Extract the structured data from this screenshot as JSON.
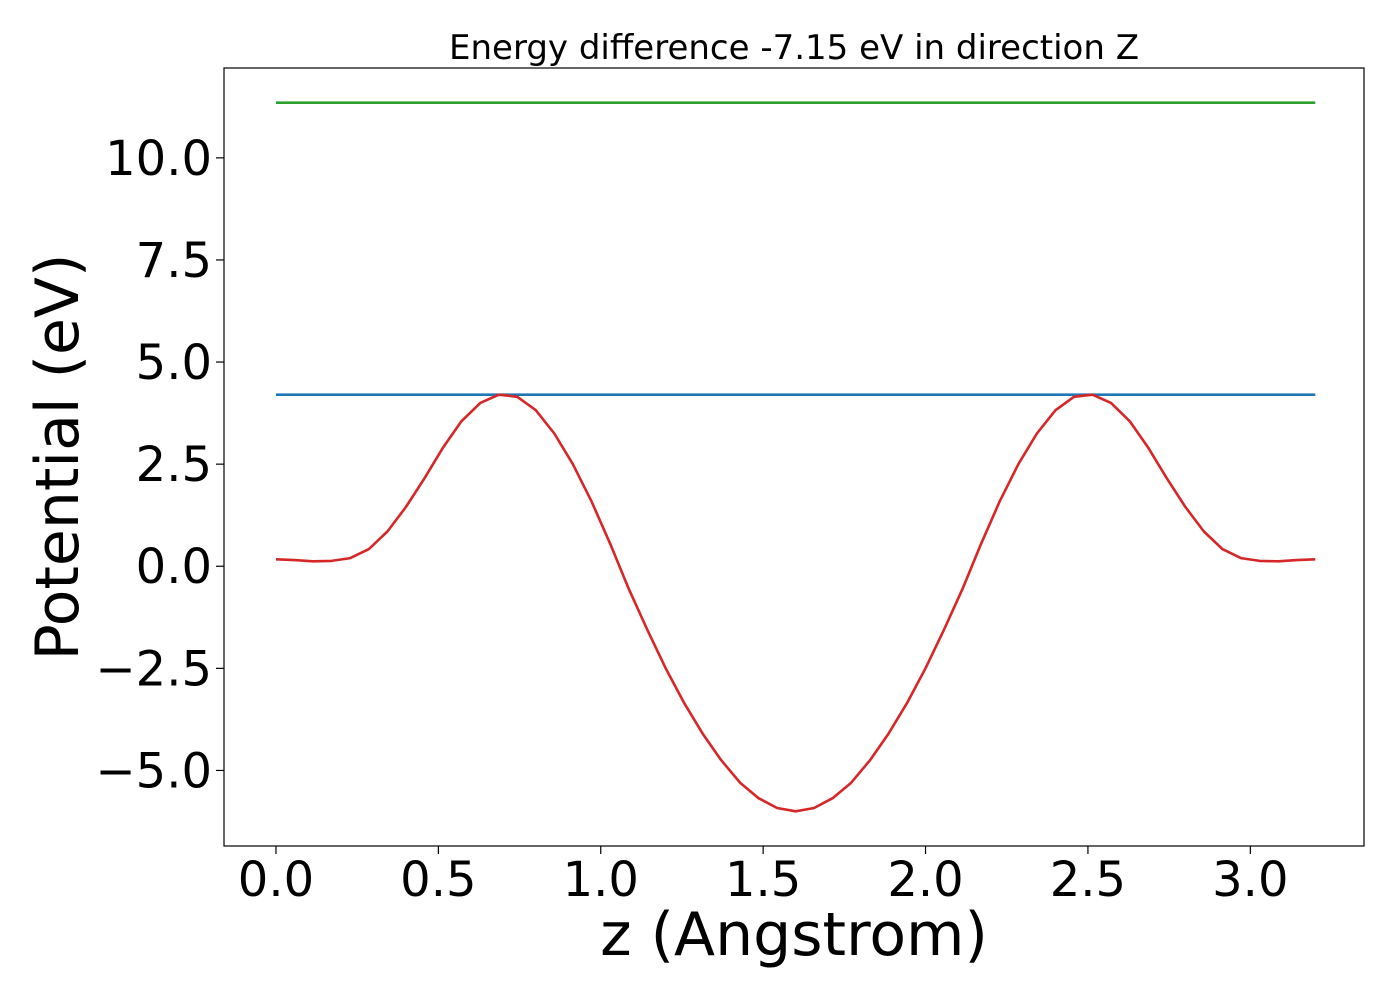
{
  "chart_data": {
    "type": "line",
    "title": "Energy difference -7.15 eV in direction Z",
    "xlabel": "z (Angstrom)",
    "ylabel": "Potential (eV)",
    "xlim": [
      -0.16,
      3.35
    ],
    "ylim": [
      -6.85,
      12.2
    ],
    "x_ticks": [
      {
        "value": 0.0,
        "label": "0.0"
      },
      {
        "value": 0.5,
        "label": "0.5"
      },
      {
        "value": 1.0,
        "label": "1.0"
      },
      {
        "value": 1.5,
        "label": "1.5"
      },
      {
        "value": 2.0,
        "label": "2.0"
      },
      {
        "value": 2.5,
        "label": "2.5"
      },
      {
        "value": 3.0,
        "label": "3.0"
      }
    ],
    "y_ticks": [
      {
        "value": -5.0,
        "label": "−5.0"
      },
      {
        "value": -2.5,
        "label": "−2.5"
      },
      {
        "value": 0.0,
        "label": "0.0"
      },
      {
        "value": 2.5,
        "label": "2.5"
      },
      {
        "value": 5.0,
        "label": "5.0"
      },
      {
        "value": 7.5,
        "label": "7.5"
      },
      {
        "value": 10.0,
        "label": "10.0"
      }
    ],
    "grid": false,
    "legend": "none",
    "series": [
      {
        "color": "#2ca02c",
        "x": [
          0.0,
          3.2
        ],
        "y": [
          11.35,
          11.35
        ]
      },
      {
        "color": "#1f77b4",
        "x": [
          0.0,
          3.2
        ],
        "y": [
          4.2,
          4.2
        ]
      },
      {
        "color": "#d62728",
        "x": [
          0.0,
          0.057,
          0.114,
          0.171,
          0.229,
          0.286,
          0.343,
          0.4,
          0.457,
          0.514,
          0.571,
          0.629,
          0.686,
          0.743,
          0.8,
          0.857,
          0.914,
          0.971,
          1.029,
          1.086,
          1.143,
          1.2,
          1.257,
          1.314,
          1.371,
          1.429,
          1.486,
          1.543,
          1.6,
          1.657,
          1.714,
          1.771,
          1.829,
          1.886,
          1.943,
          2.0,
          2.057,
          2.114,
          2.171,
          2.229,
          2.286,
          2.343,
          2.4,
          2.457,
          2.514,
          2.571,
          2.629,
          2.686,
          2.743,
          2.8,
          2.857,
          2.914,
          2.971,
          3.029,
          3.086,
          3.143,
          3.2
        ],
        "y": [
          0.17,
          0.15,
          0.12,
          0.13,
          0.2,
          0.42,
          0.85,
          1.45,
          2.15,
          2.9,
          3.55,
          4.0,
          4.2,
          4.15,
          3.82,
          3.25,
          2.5,
          1.6,
          0.55,
          -0.55,
          -1.55,
          -2.5,
          -3.35,
          -4.1,
          -4.75,
          -5.3,
          -5.68,
          -5.92,
          -6.0,
          -5.92,
          -5.68,
          -5.3,
          -4.75,
          -4.1,
          -3.35,
          -2.5,
          -1.55,
          -0.55,
          0.55,
          1.6,
          2.5,
          3.25,
          3.82,
          4.15,
          4.2,
          4.0,
          3.55,
          2.9,
          2.15,
          1.45,
          0.85,
          0.42,
          0.2,
          0.13,
          0.12,
          0.15,
          0.17
        ]
      }
    ]
  }
}
